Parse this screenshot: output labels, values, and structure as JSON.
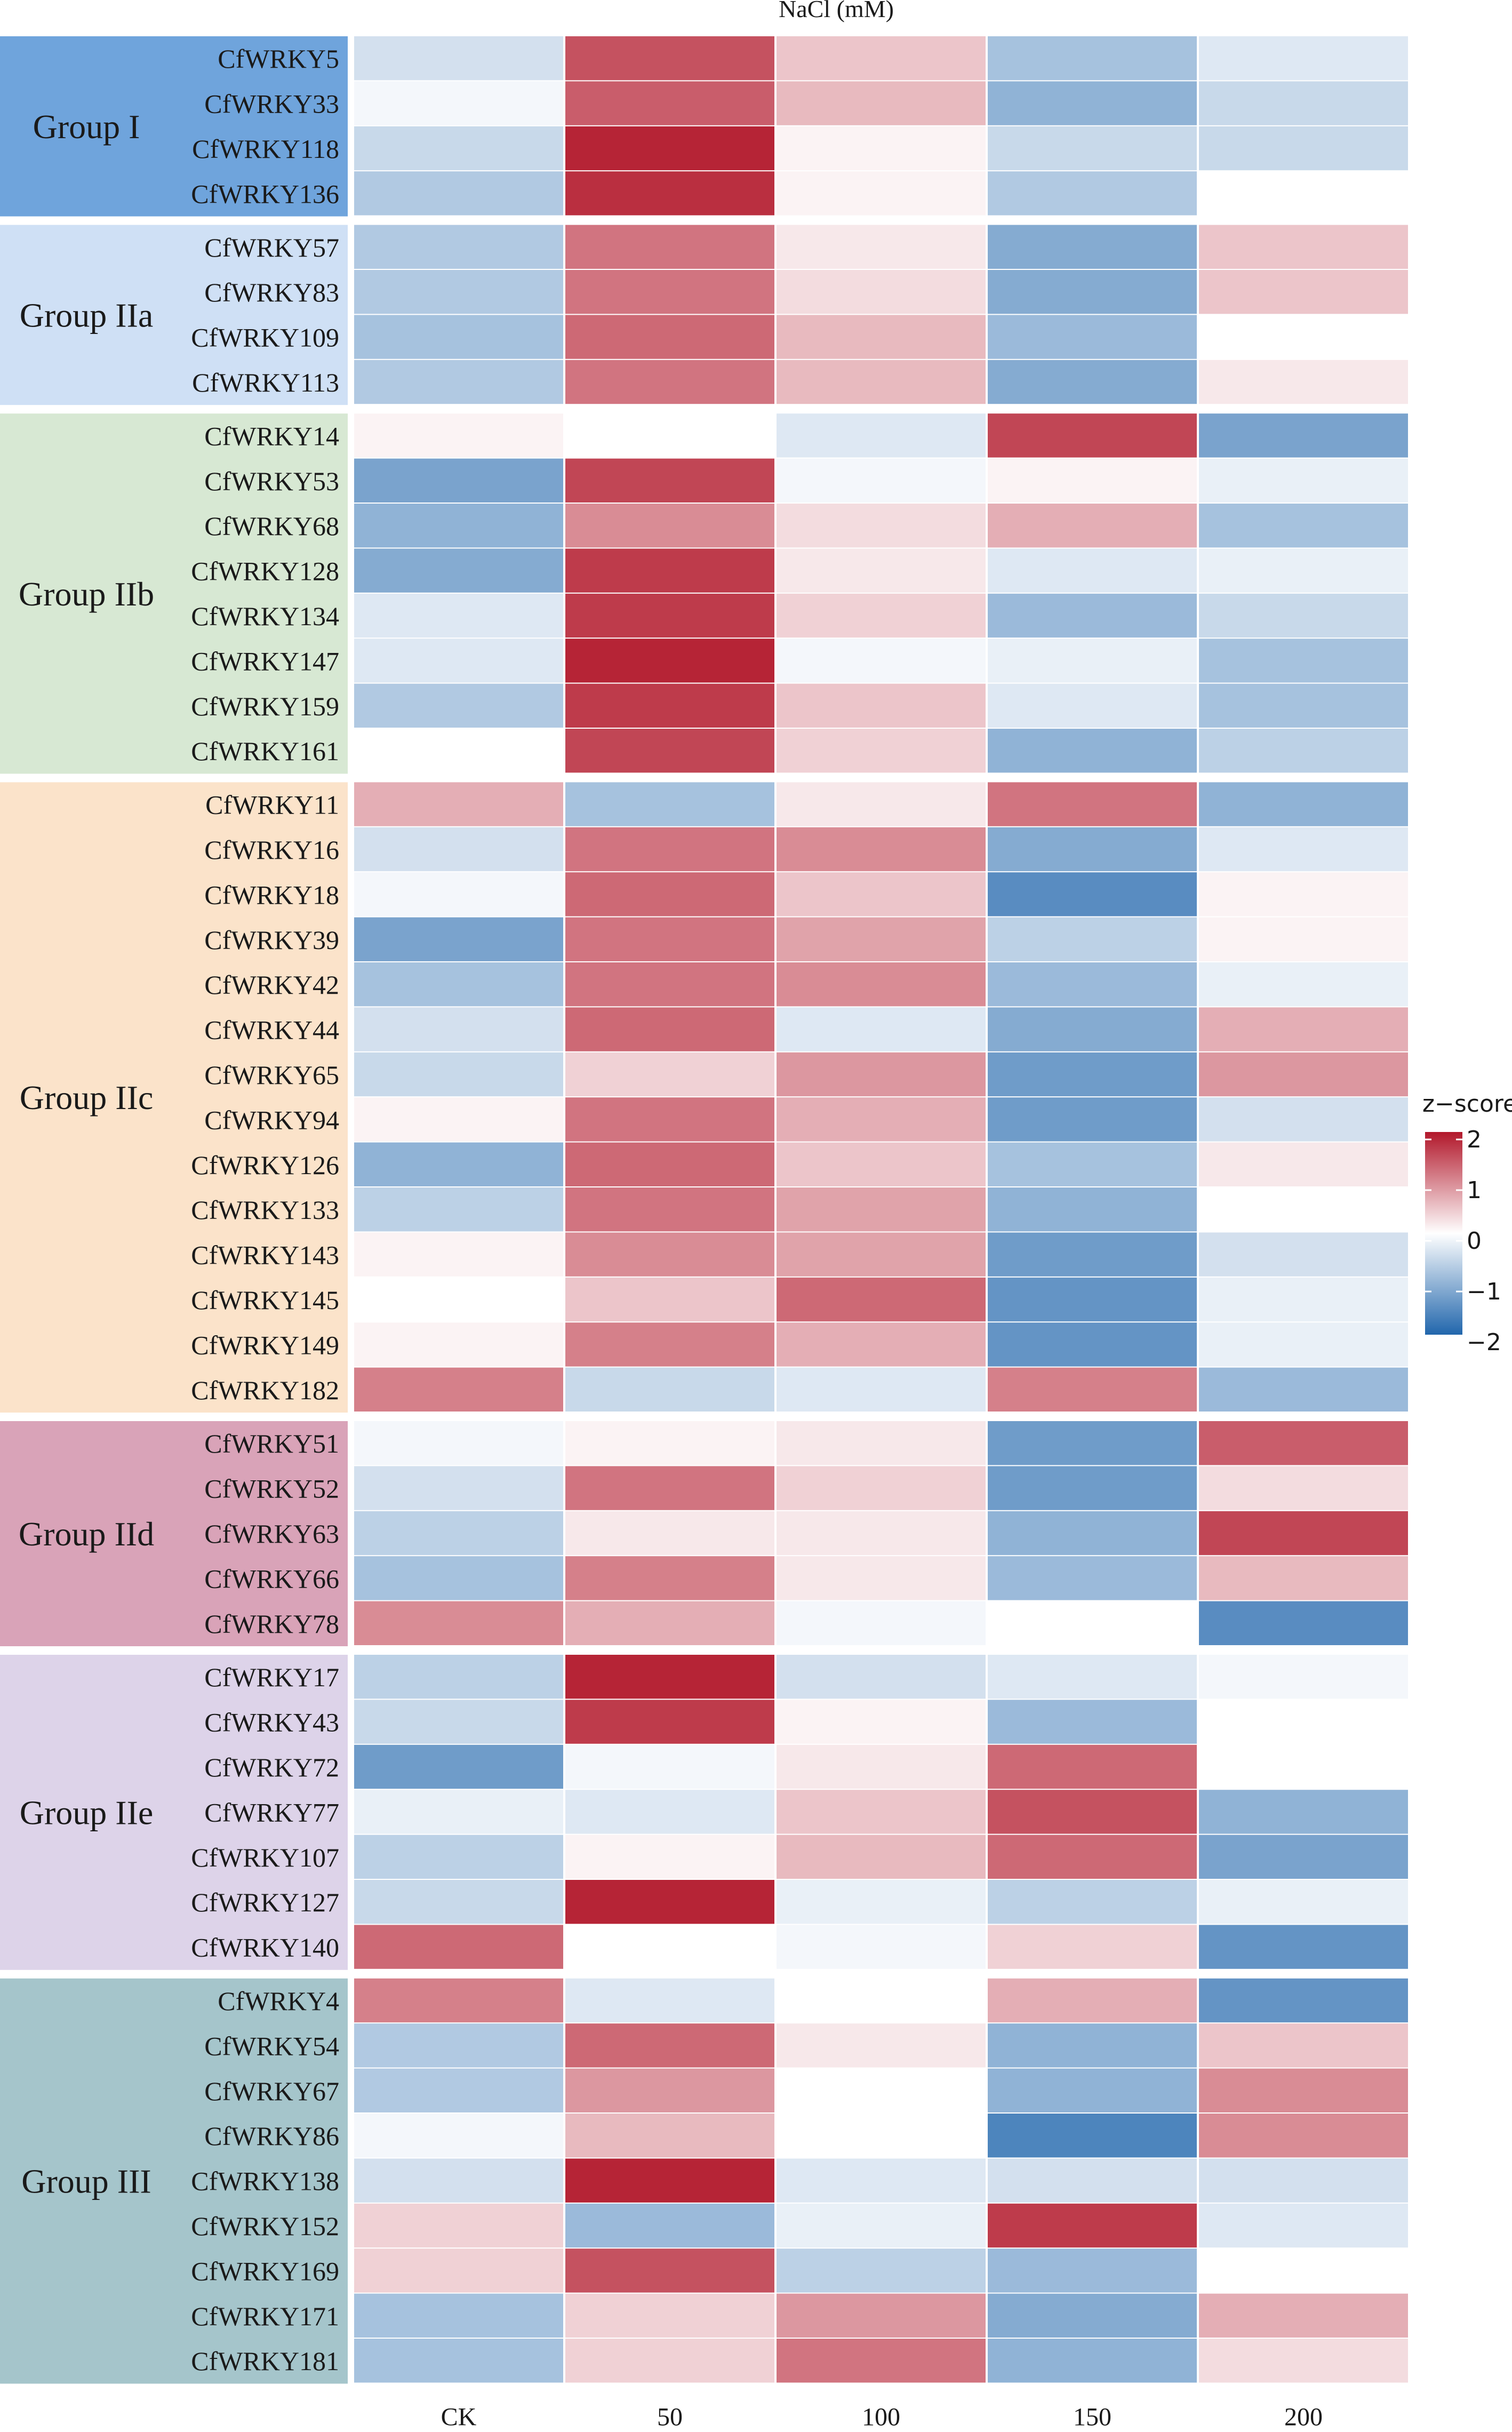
{
  "chart_data": {
    "type": "heatmap",
    "title": "NaCl (mM)",
    "columns": [
      "CK",
      "50",
      "100",
      "150",
      "200"
    ],
    "legend": {
      "title": "z−score",
      "min": -2,
      "max": 2,
      "ticks": [
        "2",
        "1",
        "0",
        "−1",
        "−2"
      ]
    },
    "colors": {
      "low": "#2166ac",
      "mid": "#ffffff",
      "high": "#b2182b"
    },
    "groups": [
      {
        "name": "Group I",
        "color": "#6fa4dc",
        "rows": [
          {
            "gene": "CfWRKY5",
            "values": [
              -0.4,
              1.5,
              0.5,
              -0.8,
              -0.3
            ]
          },
          {
            "gene": "CfWRKY33",
            "values": [
              -0.1,
              1.4,
              0.6,
              -1.0,
              -0.5
            ]
          },
          {
            "gene": "CfWRKY118",
            "values": [
              -0.5,
              1.9,
              0.1,
              -0.5,
              -0.5
            ]
          },
          {
            "gene": "CfWRKY136",
            "values": [
              -0.7,
              1.8,
              0.1,
              -0.7,
              0.0
            ]
          }
        ]
      },
      {
        "name": "Group IIa",
        "color": "#cfe0f5",
        "rows": [
          {
            "gene": "CfWRKY57",
            "values": [
              -0.7,
              1.2,
              0.2,
              -1.1,
              0.5
            ]
          },
          {
            "gene": "CfWRKY83",
            "values": [
              -0.7,
              1.2,
              0.3,
              -1.1,
              0.5
            ]
          },
          {
            "gene": "CfWRKY109",
            "values": [
              -0.8,
              1.3,
              0.6,
              -0.9,
              0.0
            ]
          },
          {
            "gene": "CfWRKY113",
            "values": [
              -0.7,
              1.2,
              0.6,
              -1.1,
              0.2
            ]
          }
        ]
      },
      {
        "name": "Group IIb",
        "color": "#d7e8d3",
        "rows": [
          {
            "gene": "CfWRKY14",
            "values": [
              0.1,
              0.0,
              -0.3,
              1.6,
              -1.2
            ]
          },
          {
            "gene": "CfWRKY53",
            "values": [
              -1.2,
              1.6,
              -0.1,
              0.1,
              -0.2
            ]
          },
          {
            "gene": "CfWRKY68",
            "values": [
              -1.0,
              1.0,
              0.3,
              0.7,
              -0.8
            ]
          },
          {
            "gene": "CfWRKY128",
            "values": [
              -1.1,
              1.7,
              0.2,
              -0.3,
              -0.2
            ]
          },
          {
            "gene": "CfWRKY134",
            "values": [
              -0.3,
              1.7,
              0.4,
              -0.9,
              -0.5
            ]
          },
          {
            "gene": "CfWRKY147",
            "values": [
              -0.3,
              1.9,
              -0.1,
              -0.2,
              -0.8
            ]
          },
          {
            "gene": "CfWRKY159",
            "values": [
              -0.7,
              1.7,
              0.5,
              -0.3,
              -0.8
            ]
          },
          {
            "gene": "CfWRKY161",
            "values": [
              0.0,
              1.6,
              0.4,
              -1.0,
              -0.6
            ]
          }
        ]
      },
      {
        "name": "Group IIc",
        "color": "#fbe3ca",
        "rows": [
          {
            "gene": "CfWRKY11",
            "values": [
              0.7,
              -0.8,
              0.2,
              1.2,
              -1.0
            ]
          },
          {
            "gene": "CfWRKY16",
            "values": [
              -0.4,
              1.2,
              1.0,
              -1.1,
              -0.3
            ]
          },
          {
            "gene": "CfWRKY18",
            "values": [
              -0.1,
              1.3,
              0.5,
              -1.5,
              0.1
            ]
          },
          {
            "gene": "CfWRKY39",
            "values": [
              -1.2,
              1.2,
              0.8,
              -0.6,
              0.1
            ]
          },
          {
            "gene": "CfWRKY42",
            "values": [
              -0.8,
              1.2,
              1.0,
              -0.9,
              -0.2
            ]
          },
          {
            "gene": "CfWRKY44",
            "values": [
              -0.4,
              1.3,
              -0.3,
              -1.1,
              0.7
            ]
          },
          {
            "gene": "CfWRKY65",
            "values": [
              -0.5,
              0.4,
              0.9,
              -1.3,
              0.9
            ]
          },
          {
            "gene": "CfWRKY94",
            "values": [
              0.1,
              1.2,
              0.7,
              -1.3,
              -0.4
            ]
          },
          {
            "gene": "CfWRKY126",
            "values": [
              -1.0,
              1.3,
              0.5,
              -0.8,
              0.2
            ]
          },
          {
            "gene": "CfWRKY133",
            "values": [
              -0.6,
              1.2,
              0.8,
              -1.0,
              0.0
            ]
          },
          {
            "gene": "CfWRKY143",
            "values": [
              0.1,
              1.0,
              0.8,
              -1.3,
              -0.4
            ]
          },
          {
            "gene": "CfWRKY145",
            "values": [
              0.0,
              0.5,
              1.3,
              -1.4,
              -0.2
            ]
          },
          {
            "gene": "CfWRKY149",
            "values": [
              0.1,
              1.1,
              0.7,
              -1.4,
              -0.2
            ]
          },
          {
            "gene": "CfWRKY182",
            "values": [
              1.1,
              -0.5,
              -0.3,
              1.1,
              -0.9
            ]
          }
        ]
      },
      {
        "name": "Group IId",
        "color": "#d9a3b8",
        "rows": [
          {
            "gene": "CfWRKY51",
            "values": [
              -0.1,
              0.1,
              0.2,
              -1.3,
              1.4
            ]
          },
          {
            "gene": "CfWRKY52",
            "values": [
              -0.4,
              1.2,
              0.4,
              -1.3,
              0.3
            ]
          },
          {
            "gene": "CfWRKY63",
            "values": [
              -0.6,
              0.2,
              0.2,
              -1.0,
              1.6
            ]
          },
          {
            "gene": "CfWRKY66",
            "values": [
              -0.8,
              1.1,
              0.2,
              -0.9,
              0.6
            ]
          },
          {
            "gene": "CfWRKY78",
            "values": [
              1.0,
              0.7,
              -0.1,
              0.0,
              -1.5
            ]
          }
        ]
      },
      {
        "name": "Group IIe",
        "color": "#ddd3e9",
        "rows": [
          {
            "gene": "CfWRKY17",
            "values": [
              -0.6,
              1.9,
              -0.4,
              -0.3,
              -0.1
            ]
          },
          {
            "gene": "CfWRKY43",
            "values": [
              -0.5,
              1.7,
              0.1,
              -0.9,
              0.0
            ]
          },
          {
            "gene": "CfWRKY72",
            "values": [
              -1.3,
              -0.1,
              0.2,
              1.3,
              0.0
            ]
          },
          {
            "gene": "CfWRKY77",
            "values": [
              -0.2,
              -0.3,
              0.5,
              1.5,
              -1.0
            ]
          },
          {
            "gene": "CfWRKY107",
            "values": [
              -0.6,
              0.1,
              0.6,
              1.3,
              -1.2
            ]
          },
          {
            "gene": "CfWRKY127",
            "values": [
              -0.5,
              1.9,
              -0.2,
              -0.6,
              -0.2
            ]
          },
          {
            "gene": "CfWRKY140",
            "values": [
              1.3,
              0.0,
              -0.1,
              0.4,
              -1.4
            ]
          }
        ]
      },
      {
        "name": "Group III",
        "color": "#a5c5cb",
        "rows": [
          {
            "gene": "CfWRKY4",
            "values": [
              1.1,
              -0.3,
              0.0,
              0.7,
              -1.4
            ]
          },
          {
            "gene": "CfWRKY54",
            "values": [
              -0.7,
              1.3,
              0.2,
              -1.0,
              0.5
            ]
          },
          {
            "gene": "CfWRKY67",
            "values": [
              -0.7,
              0.9,
              0.0,
              -1.0,
              1.0
            ]
          },
          {
            "gene": "CfWRKY86",
            "values": [
              -0.1,
              0.6,
              0.0,
              -1.6,
              1.0
            ]
          },
          {
            "gene": "CfWRKY138",
            "values": [
              -0.4,
              1.9,
              -0.3,
              -0.4,
              -0.4
            ]
          },
          {
            "gene": "CfWRKY152",
            "values": [
              0.4,
              -0.9,
              -0.2,
              1.7,
              -0.3
            ]
          },
          {
            "gene": "CfWRKY169",
            "values": [
              0.4,
              1.5,
              -0.6,
              -0.9,
              0.0
            ]
          },
          {
            "gene": "CfWRKY171",
            "values": [
              -0.8,
              0.4,
              0.9,
              -1.1,
              0.7
            ]
          },
          {
            "gene": "CfWRKY181",
            "values": [
              -0.8,
              0.4,
              1.2,
              -1.0,
              0.3
            ]
          }
        ]
      }
    ]
  }
}
